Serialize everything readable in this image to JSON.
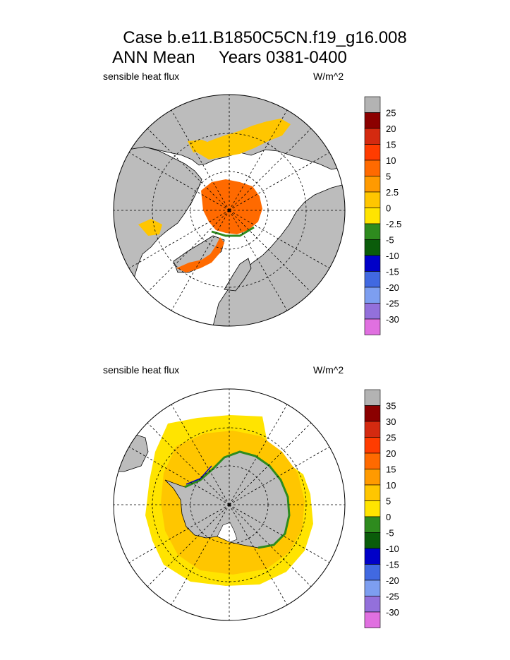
{
  "header": {
    "case_title": "Case b.e11.B1850C5CN.f19_g16.008",
    "mean_label": "ANN Mean",
    "years_label": "Years 0381-0400"
  },
  "colors": {
    "land": "#bcbcbc",
    "water": "#ffffff"
  },
  "chart_data": [
    {
      "type": "heatmap",
      "projection": "north-polar-stereographic",
      "title": "sensible heat flux",
      "units": "W/m^2",
      "colorbar": {
        "labels": [
          "25",
          "20",
          "15",
          "10",
          "5",
          "2.5",
          "0",
          "-2.5",
          "-5",
          "-10",
          "-15",
          "-20",
          "-25",
          "-30"
        ],
        "colors": [
          "#b3b3b3",
          "#8b0000",
          "#d42a10",
          "#ff3c00",
          "#ff6a00",
          "#ff9a00",
          "#ffc600",
          "#ffe400",
          "#2e8b1e",
          "#0a5c0a",
          "#0000c8",
          "#4169e1",
          "#7d9ef0",
          "#9370db",
          "#e070e0"
        ]
      }
    },
    {
      "type": "heatmap",
      "projection": "south-polar-stereographic",
      "title": "sensible heat flux",
      "units": "W/m^2",
      "colorbar": {
        "labels": [
          "35",
          "30",
          "25",
          "20",
          "15",
          "10",
          "5",
          "0",
          "-5",
          "-10",
          "-15",
          "-20",
          "-25",
          "-30"
        ],
        "colors": [
          "#b3b3b3",
          "#8b0000",
          "#d42a10",
          "#ff3c00",
          "#ff6a00",
          "#ff9a00",
          "#ffc600",
          "#ffe400",
          "#2e8b1e",
          "#0a5c0a",
          "#0000c8",
          "#4169e1",
          "#7d9ef0",
          "#9370db",
          "#e070e0"
        ]
      }
    }
  ]
}
